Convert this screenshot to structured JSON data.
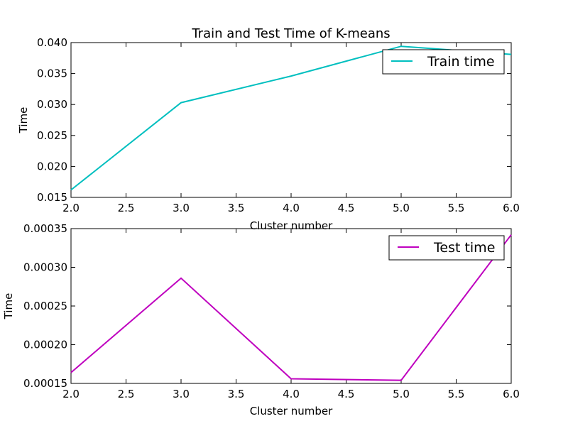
{
  "chart_data": [
    {
      "type": "line",
      "title": "Train and Test Time of K-means",
      "xlabel": "Cluster number",
      "ylabel": "Time",
      "xlim": [
        2.0,
        6.0
      ],
      "ylim": [
        0.015,
        0.04
      ],
      "xticks": [
        "2.0",
        "2.5",
        "3.0",
        "3.5",
        "4.0",
        "4.5",
        "5.0",
        "5.5",
        "6.0"
      ],
      "yticks": [
        "0.015",
        "0.020",
        "0.025",
        "0.030",
        "0.035",
        "0.040"
      ],
      "legend_position": "top-right",
      "grid": false,
      "series": [
        {
          "name": "Train time",
          "color": "#00bfbf",
          "x": [
            2,
            3,
            4,
            5,
            6
          ],
          "y": [
            0.0162,
            0.0303,
            0.0346,
            0.0394,
            0.0381
          ]
        }
      ]
    },
    {
      "type": "line",
      "title": "",
      "xlabel": "Cluster number",
      "ylabel": "Time",
      "xlim": [
        2.0,
        6.0
      ],
      "ylim": [
        0.00015,
        0.00035
      ],
      "xticks": [
        "2.0",
        "2.5",
        "3.0",
        "3.5",
        "4.0",
        "4.5",
        "5.0",
        "5.5",
        "6.0"
      ],
      "yticks": [
        "0.00015",
        "0.00020",
        "0.00025",
        "0.00030",
        "0.00035"
      ],
      "legend_position": "top-right",
      "grid": false,
      "series": [
        {
          "name": "Test time",
          "color": "#bf00bf",
          "x": [
            2,
            3,
            4,
            5,
            6
          ],
          "y": [
            0.000164,
            0.000286,
            0.000156,
            0.000154,
            0.000342
          ]
        }
      ]
    }
  ]
}
